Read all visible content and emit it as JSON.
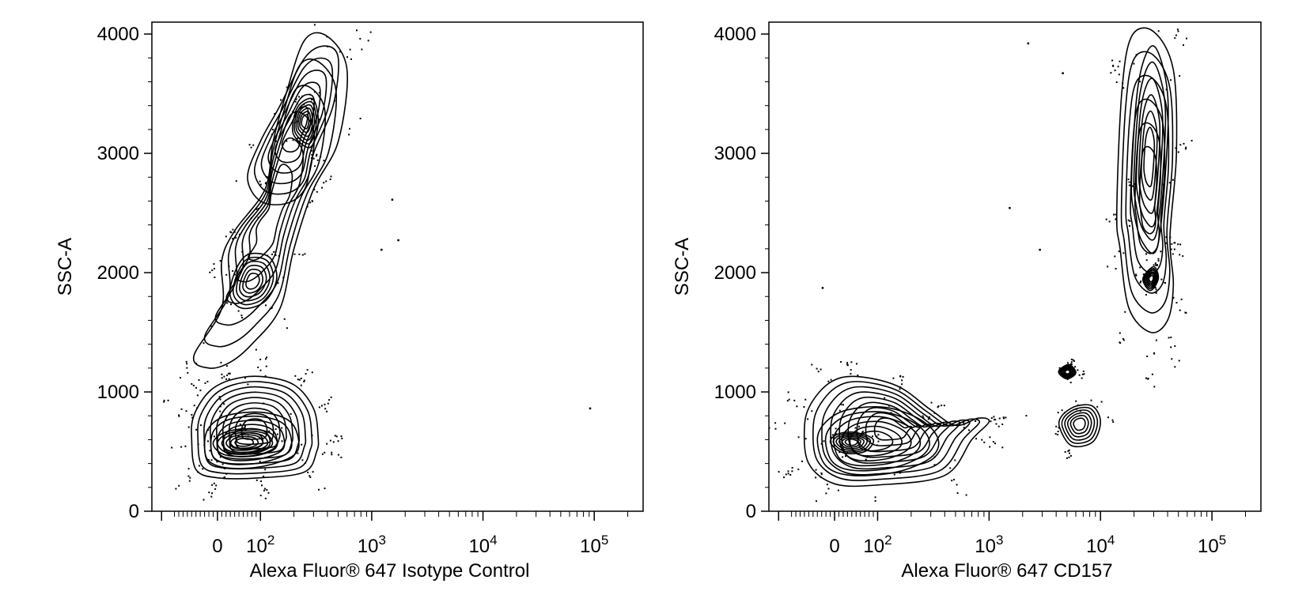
{
  "chart_data": [
    {
      "type": "contour",
      "title": "",
      "xlabel": "Alexa Fluor® 647 Isotype Control",
      "ylabel": "SSC-A",
      "x_scale": "biexponential (logicle)",
      "x_ticks": [
        "0",
        "10^2",
        "10^3",
        "10^4",
        "10^5"
      ],
      "y_ticks": [
        "0",
        "1000",
        "2000",
        "3000",
        "4000"
      ],
      "ylim": [
        0,
        4100
      ],
      "grid": false,
      "legend": "none",
      "populations": [
        {
          "description": "low SSC cluster",
          "x_center": 0,
          "y_center": 570
        },
        {
          "description": "mid SSC cluster",
          "x_center": 80,
          "y_center": 1930
        },
        {
          "description": "high SSC cluster",
          "x_center": 250,
          "y_center": 3300
        }
      ],
      "contours": [
        [
          [
            -60,
            600
          ],
          [
            -50,
            350
          ],
          [
            0,
            280
          ],
          [
            100,
            280
          ],
          [
            250,
            330
          ],
          [
            320,
            500
          ],
          [
            330,
            620
          ],
          [
            300,
            860
          ],
          [
            200,
            1060
          ],
          [
            100,
            1130
          ],
          [
            30,
            1100
          ],
          [
            -20,
            1000
          ],
          [
            -55,
            800
          ]
        ],
        [
          [
            -30,
            560
          ],
          [
            -20,
            420
          ],
          [
            30,
            360
          ],
          [
            110,
            380
          ],
          [
            200,
            470
          ],
          [
            220,
            600
          ],
          [
            180,
            760
          ],
          [
            100,
            830
          ],
          [
            20,
            800
          ],
          [
            -20,
            700
          ]
        ],
        [
          [
            -10,
            560
          ],
          [
            20,
            470
          ],
          [
            90,
            470
          ],
          [
            140,
            550
          ],
          [
            120,
            660
          ],
          [
            60,
            690
          ],
          [
            10,
            650
          ]
        ],
        [
          [
            -55,
            1300
          ],
          [
            10,
            1700
          ],
          [
            10,
            2100
          ],
          [
            40,
            2350
          ],
          [
            110,
            2700
          ],
          [
            130,
            3100
          ],
          [
            170,
            3500
          ],
          [
            250,
            3950
          ],
          [
            400,
            3980
          ],
          [
            600,
            3700
          ],
          [
            500,
            3100
          ],
          [
            300,
            2700
          ],
          [
            200,
            2200
          ],
          [
            150,
            1700
          ],
          [
            80,
            1400
          ],
          [
            30,
            1250
          ],
          [
            -20,
            1200
          ]
        ],
        [
          [
            30,
            1800
          ],
          [
            60,
            1700
          ],
          [
            110,
            1760
          ],
          [
            140,
            1950
          ],
          [
            120,
            2130
          ],
          [
            70,
            2150
          ],
          [
            40,
            2000
          ]
        ],
        [
          [
            70,
            2800
          ],
          [
            100,
            2600
          ],
          [
            170,
            2580
          ],
          [
            250,
            2700
          ],
          [
            300,
            3000
          ],
          [
            450,
            3400
          ],
          [
            500,
            3800
          ],
          [
            380,
            3900
          ],
          [
            250,
            3800
          ],
          [
            150,
            3400
          ],
          [
            100,
            3100
          ]
        ],
        [
          [
            200,
            3150
          ],
          [
            280,
            3050
          ],
          [
            330,
            3250
          ],
          [
            300,
            3450
          ],
          [
            230,
            3420
          ],
          [
            200,
            3300
          ]
        ]
      ],
      "outlier_points": [
        [
          90000,
          870
        ],
        [
          1200,
          2200
        ],
        [
          1700,
          2280
        ],
        [
          1500,
          2620
        ]
      ]
    },
    {
      "type": "contour",
      "title": "",
      "xlabel": "Alexa Fluor® 647 CD157",
      "ylabel": "SSC-A",
      "x_scale": "biexponential (logicle)",
      "x_ticks": [
        "0",
        "10^2",
        "10^3",
        "10^4",
        "10^5"
      ],
      "y_ticks": [
        "0",
        "1000",
        "2000",
        "3000",
        "4000"
      ],
      "ylim": [
        0,
        4100
      ],
      "grid": false,
      "legend": "none",
      "populations": [
        {
          "description": "CD157- low SSC cluster",
          "x_center": 10,
          "y_center": 570
        },
        {
          "description": "CD157+ high SSC cluster",
          "x_center": 28000,
          "y_center": 3000
        },
        {
          "description": "CD157+ mid SSC cluster",
          "x_center": 30000,
          "y_center": 1950
        },
        {
          "description": "small cluster",
          "x_center": 7000,
          "y_center": 680
        }
      ],
      "contours": [
        [
          [
            -70,
            700
          ],
          [
            -60,
            400
          ],
          [
            0,
            230
          ],
          [
            100,
            220
          ],
          [
            400,
            300
          ],
          [
            700,
            600
          ],
          [
            1000,
            750
          ],
          [
            800,
            780
          ],
          [
            500,
            720
          ],
          [
            300,
            850
          ],
          [
            150,
            1050
          ],
          [
            50,
            1130
          ],
          [
            -10,
            1080
          ],
          [
            -55,
            900
          ]
        ],
        [
          [
            -40,
            600
          ],
          [
            -20,
            380
          ],
          [
            40,
            300
          ],
          [
            150,
            330
          ],
          [
            300,
            450
          ],
          [
            350,
            600
          ],
          [
            250,
            760
          ],
          [
            120,
            870
          ],
          [
            30,
            850
          ],
          [
            -20,
            750
          ]
        ],
        [
          [
            -10,
            580
          ],
          [
            20,
            490
          ],
          [
            70,
            500
          ],
          [
            90,
            600
          ],
          [
            50,
            660
          ],
          [
            10,
            650
          ]
        ],
        [
          [
            14000,
            2500
          ],
          [
            15500,
            3500
          ],
          [
            19000,
            3980
          ],
          [
            30000,
            4020
          ],
          [
            45000,
            3700
          ],
          [
            48000,
            3000
          ],
          [
            42000,
            2300
          ],
          [
            45000,
            1900
          ],
          [
            40000,
            1600
          ],
          [
            28000,
            1500
          ],
          [
            18000,
            1700
          ],
          [
            15000,
            2200
          ]
        ],
        [
          [
            19000,
            2800
          ],
          [
            22000,
            3600
          ],
          [
            30000,
            3900
          ],
          [
            40000,
            3500
          ],
          [
            38000,
            2800
          ],
          [
            32000,
            2200
          ],
          [
            24000,
            2250
          ],
          [
            20000,
            2500
          ]
        ],
        [
          [
            24000,
            1950
          ],
          [
            28000,
            1850
          ],
          [
            33000,
            1950
          ],
          [
            30000,
            2050
          ]
        ],
        [
          [
            4300,
            700
          ],
          [
            5500,
            550
          ],
          [
            8500,
            580
          ],
          [
            10000,
            750
          ],
          [
            8500,
            880
          ],
          [
            6000,
            880
          ],
          [
            4500,
            800
          ]
        ],
        [
          [
            4200,
            1170
          ],
          [
            5000,
            1110
          ],
          [
            6000,
            1160
          ],
          [
            5200,
            1230
          ]
        ]
      ],
      "outlier_points": [
        [
          2200,
          3930
        ],
        [
          4500,
          3680
        ],
        [
          1500,
          2550
        ],
        [
          2800,
          2200
        ],
        [
          -30,
          1880
        ]
      ]
    }
  ]
}
